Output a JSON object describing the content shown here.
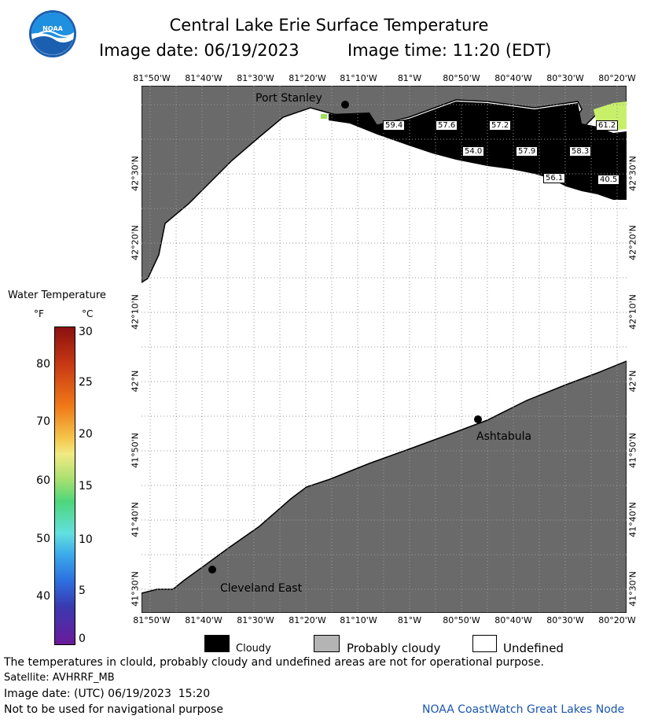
{
  "header": {
    "title": "Central Lake Erie Surface Temperature",
    "image_date": "Image date: 06/19/2023",
    "image_time": "Image time: 11:20 (EDT)"
  },
  "logo": {
    "text": "NOAA"
  },
  "axes": {
    "lon_labels": [
      "81°50'W",
      "81°40'W",
      "81°30'W",
      "81°20'W",
      "81°10'W",
      "81°W",
      "80°50'W",
      "80°40'W",
      "80°30'W",
      "80°20'W"
    ],
    "lat_labels": [
      "42°30'N",
      "42°20'N",
      "42°10'N",
      "42°N",
      "41°50'N",
      "41°40'N",
      "41°30'N"
    ]
  },
  "places": {
    "port_stanley": "Port Stanley",
    "ashtabula": "Ashtabula",
    "cleveland_east": "Cleveland East"
  },
  "temp_labels": [
    "59.4",
    "57.6",
    "57.2",
    "54.0",
    "57.9",
    "58.3",
    "56.1",
    "40.5",
    "61.2"
  ],
  "colorbar": {
    "title": "Water Temperature",
    "unit_f": "°F",
    "unit_c": "°C",
    "f_ticks": [
      "80",
      "70",
      "60",
      "50",
      "40"
    ],
    "c_ticks": [
      "30",
      "25",
      "20",
      "15",
      "10",
      "5",
      "0"
    ]
  },
  "legend": {
    "cloudy": "Cloudy",
    "probably_cloudy": "Probably cloudy",
    "undefined": "Undefined"
  },
  "footer": {
    "disclaimer": "The temperatures in clould, probably cloudy and undefined areas are not for operational purpose.",
    "satellite": "Satellite: AVHRRF_MB",
    "utc_date": "Image date: (UTC) 06/19/2023  15:20",
    "nav_warning": "Not to be used for navigational purpose",
    "credit": "NOAA CoastWatch Great Lakes Node"
  },
  "colors": {
    "land": "#6a6a6a",
    "cloud": "#000000",
    "undefined": "#ffffff",
    "probably_cloudy": "#b4b4b4",
    "credit": "#1a56b0"
  }
}
